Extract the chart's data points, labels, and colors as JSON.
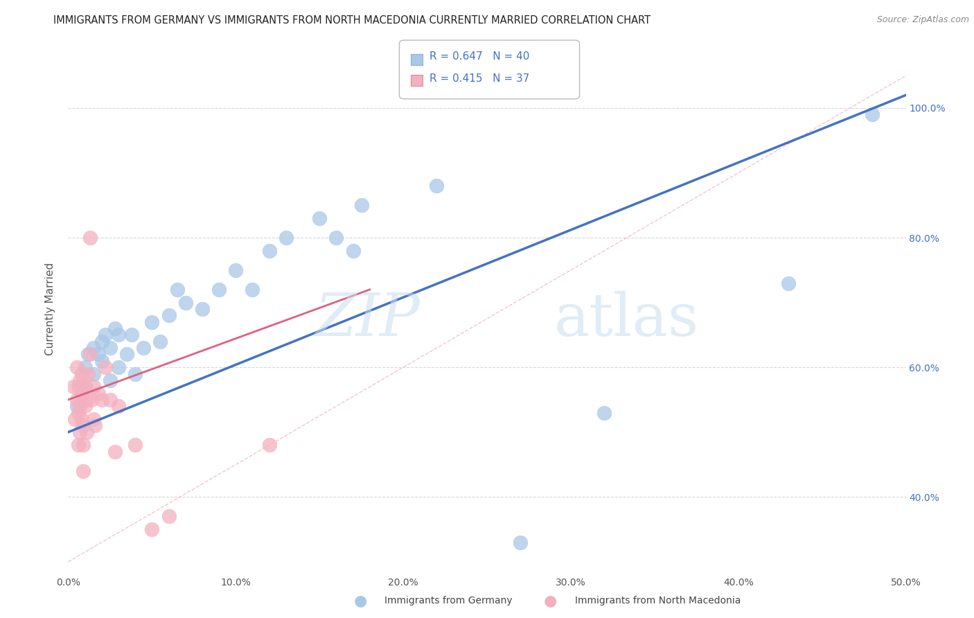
{
  "title": "IMMIGRANTS FROM GERMANY VS IMMIGRANTS FROM NORTH MACEDONIA CURRENTLY MARRIED CORRELATION CHART",
  "source": "Source: ZipAtlas.com",
  "ylabel": "Currently Married",
  "xlim": [
    0.0,
    0.5
  ],
  "ylim": [
    0.28,
    1.1
  ],
  "germany_R": 0.647,
  "germany_N": 40,
  "macedonia_R": 0.415,
  "macedonia_N": 37,
  "germany_color": "#a8c8e8",
  "macedonia_color": "#f4b0c0",
  "germany_line_color": "#4472c4",
  "macedonia_line_color": "#e06080",
  "watermark_zip": "ZIP",
  "watermark_atlas": "atlas",
  "grid_color": "#d8d8d8",
  "background_color": "#ffffff",
  "yticks": [
    0.4,
    0.6,
    0.8,
    1.0
  ],
  "xticks": [
    0.0,
    0.1,
    0.2,
    0.3,
    0.4,
    0.5
  ],
  "germany_scatter": [
    [
      0.005,
      0.54
    ],
    [
      0.008,
      0.56
    ],
    [
      0.01,
      0.57
    ],
    [
      0.01,
      0.6
    ],
    [
      0.012,
      0.62
    ],
    [
      0.015,
      0.59
    ],
    [
      0.015,
      0.63
    ],
    [
      0.018,
      0.62
    ],
    [
      0.02,
      0.61
    ],
    [
      0.02,
      0.64
    ],
    [
      0.022,
      0.65
    ],
    [
      0.025,
      0.58
    ],
    [
      0.025,
      0.63
    ],
    [
      0.028,
      0.66
    ],
    [
      0.03,
      0.6
    ],
    [
      0.03,
      0.65
    ],
    [
      0.035,
      0.62
    ],
    [
      0.038,
      0.65
    ],
    [
      0.04,
      0.59
    ],
    [
      0.045,
      0.63
    ],
    [
      0.05,
      0.67
    ],
    [
      0.055,
      0.64
    ],
    [
      0.06,
      0.68
    ],
    [
      0.065,
      0.72
    ],
    [
      0.07,
      0.7
    ],
    [
      0.08,
      0.69
    ],
    [
      0.09,
      0.72
    ],
    [
      0.1,
      0.75
    ],
    [
      0.11,
      0.72
    ],
    [
      0.12,
      0.78
    ],
    [
      0.13,
      0.8
    ],
    [
      0.15,
      0.83
    ],
    [
      0.16,
      0.8
    ],
    [
      0.17,
      0.78
    ],
    [
      0.175,
      0.85
    ],
    [
      0.22,
      0.88
    ],
    [
      0.27,
      0.33
    ],
    [
      0.32,
      0.53
    ],
    [
      0.43,
      0.73
    ],
    [
      0.48,
      0.99
    ]
  ],
  "macedonia_scatter": [
    [
      0.003,
      0.57
    ],
    [
      0.004,
      0.52
    ],
    [
      0.005,
      0.55
    ],
    [
      0.005,
      0.6
    ],
    [
      0.006,
      0.48
    ],
    [
      0.006,
      0.53
    ],
    [
      0.006,
      0.57
    ],
    [
      0.007,
      0.5
    ],
    [
      0.007,
      0.54
    ],
    [
      0.007,
      0.58
    ],
    [
      0.008,
      0.52
    ],
    [
      0.008,
      0.56
    ],
    [
      0.008,
      0.59
    ],
    [
      0.009,
      0.44
    ],
    [
      0.009,
      0.48
    ],
    [
      0.009,
      0.51
    ],
    [
      0.01,
      0.54
    ],
    [
      0.01,
      0.57
    ],
    [
      0.011,
      0.5
    ],
    [
      0.011,
      0.55
    ],
    [
      0.012,
      0.59
    ],
    [
      0.013,
      0.62
    ],
    [
      0.013,
      0.8
    ],
    [
      0.014,
      0.55
    ],
    [
      0.015,
      0.52
    ],
    [
      0.015,
      0.57
    ],
    [
      0.016,
      0.51
    ],
    [
      0.018,
      0.56
    ],
    [
      0.02,
      0.55
    ],
    [
      0.022,
      0.6
    ],
    [
      0.025,
      0.55
    ],
    [
      0.028,
      0.47
    ],
    [
      0.03,
      0.54
    ],
    [
      0.04,
      0.48
    ],
    [
      0.05,
      0.35
    ],
    [
      0.06,
      0.37
    ],
    [
      0.12,
      0.48
    ]
  ]
}
